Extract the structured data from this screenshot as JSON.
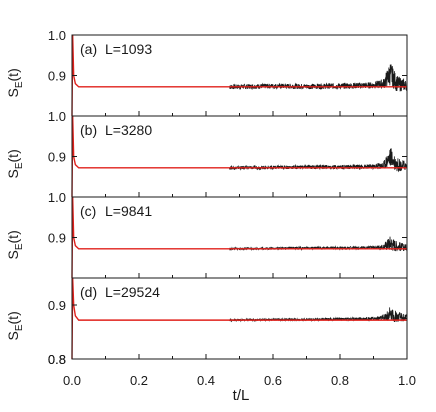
{
  "figure": {
    "xlabel": "t/L",
    "ylabel_main": "S",
    "ylabel_sub": "E",
    "ylabel_tail": "(t)",
    "x_ticks": [
      "0.0",
      "0.2",
      "0.4",
      "0.6",
      "0.8",
      "1.0"
    ]
  },
  "colors": {
    "data": "#1a1a1a",
    "fit": "#e0201b",
    "axis": "#1a1a1a"
  },
  "chart_data": [
    {
      "type": "line",
      "label": "(a)",
      "annotation": "L=1093",
      "xlim": [
        0.0,
        1.0
      ],
      "ylim": [
        0.8,
        1.0
      ],
      "y_ticks": [
        "1.0",
        "0.9"
      ],
      "series": [
        {
          "role": "data",
          "x": [
            0.47,
            0.6,
            0.7,
            0.8,
            0.9,
            0.93,
            0.95,
            0.97,
            1.0
          ],
          "y": [
            0.872,
            0.874,
            0.873,
            0.874,
            0.876,
            0.88,
            0.905,
            0.88,
            0.875
          ],
          "spread": [
            0.012,
            0.012,
            0.013,
            0.014,
            0.016,
            0.025,
            0.06,
            0.04,
            0.025
          ]
        },
        {
          "role": "fit",
          "x": [
            0.0,
            0.002,
            0.005,
            0.01,
            0.02,
            1.0
          ],
          "y": [
            0.8,
            1.0,
            0.9,
            0.88,
            0.872,
            0.872
          ]
        }
      ]
    },
    {
      "type": "line",
      "label": "(b)",
      "annotation": "L=3280",
      "xlim": [
        0.0,
        1.0
      ],
      "ylim": [
        0.8,
        1.0
      ],
      "y_ticks": [
        "1.0",
        "0.9"
      ],
      "series": [
        {
          "role": "data",
          "x": [
            0.47,
            0.6,
            0.7,
            0.8,
            0.9,
            0.93,
            0.95,
            0.97,
            1.0
          ],
          "y": [
            0.872,
            0.873,
            0.874,
            0.874,
            0.875,
            0.878,
            0.9,
            0.88,
            0.876
          ],
          "spread": [
            0.008,
            0.009,
            0.01,
            0.01,
            0.012,
            0.02,
            0.05,
            0.035,
            0.02
          ]
        },
        {
          "role": "fit",
          "x": [
            0.0,
            0.002,
            0.005,
            0.01,
            0.02,
            1.0
          ],
          "y": [
            0.8,
            1.0,
            0.9,
            0.88,
            0.872,
            0.872
          ]
        }
      ]
    },
    {
      "type": "line",
      "label": "(c)",
      "annotation": "L=9841",
      "xlim": [
        0.0,
        1.0
      ],
      "ylim": [
        0.8,
        1.0
      ],
      "y_ticks": [
        "1.0",
        "0.9"
      ],
      "series": [
        {
          "role": "data",
          "x": [
            0.47,
            0.6,
            0.7,
            0.8,
            0.9,
            0.93,
            0.95,
            0.97,
            1.0
          ],
          "y": [
            0.872,
            0.873,
            0.874,
            0.874,
            0.875,
            0.877,
            0.885,
            0.878,
            0.875
          ],
          "spread": [
            0.005,
            0.006,
            0.006,
            0.007,
            0.008,
            0.014,
            0.04,
            0.025,
            0.015
          ]
        },
        {
          "role": "fit",
          "x": [
            0.0,
            0.002,
            0.005,
            0.01,
            0.02,
            1.0
          ],
          "y": [
            0.8,
            1.0,
            0.9,
            0.88,
            0.872,
            0.872
          ]
        }
      ]
    },
    {
      "type": "line",
      "label": "(d)",
      "annotation": "L=29524",
      "xlim": [
        0.0,
        1.0
      ],
      "ylim": [
        0.8,
        0.95
      ],
      "y_ticks": [
        "0.9",
        "0.8"
      ],
      "series": [
        {
          "role": "data",
          "x": [
            0.47,
            0.6,
            0.7,
            0.8,
            0.9,
            0.93,
            0.95,
            0.97,
            1.0
          ],
          "y": [
            0.872,
            0.873,
            0.873,
            0.874,
            0.875,
            0.876,
            0.882,
            0.878,
            0.876
          ],
          "spread": [
            0.003,
            0.004,
            0.004,
            0.005,
            0.006,
            0.01,
            0.03,
            0.02,
            0.012
          ]
        },
        {
          "role": "fit",
          "x": [
            0.0,
            0.002,
            0.005,
            0.01,
            0.02,
            1.0
          ],
          "y": [
            0.8,
            0.95,
            0.9,
            0.88,
            0.872,
            0.872
          ]
        }
      ]
    }
  ]
}
